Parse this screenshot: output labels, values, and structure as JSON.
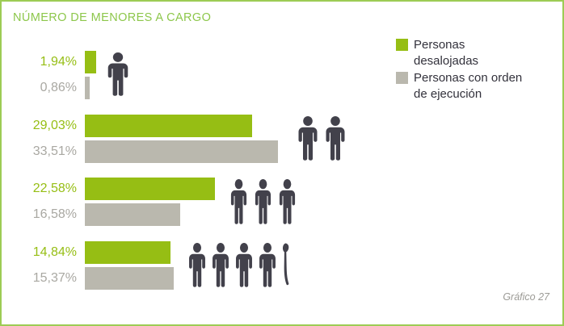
{
  "header": {
    "title": "NÚMERO DE MENORES A CARGO"
  },
  "footer": {
    "note": "Gráfico 27"
  },
  "colors": {
    "border_green": "#9DCC55",
    "title_green": "#8DC74B",
    "bar_green": "#96BE14",
    "bar_gray": "#BAB8AE",
    "value_green": "#96BE14",
    "value_gray": "#A9A8A2",
    "icon_dark": "#42414B",
    "legend_text": "#32313B",
    "footer_gray": "#9C9B96"
  },
  "legend": {
    "items": [
      {
        "label": "Personas desalojadas",
        "swatch": "#96BE14"
      },
      {
        "label": "Personas con orden de ejecución",
        "swatch": "#BAB8AE"
      }
    ]
  },
  "chart_data": {
    "type": "bar",
    "orientation": "horizontal",
    "title": "NÚMERO DE MENORES A CARGO",
    "unit": "%",
    "axis": {
      "min": 0,
      "max": 35,
      "gridlines": false
    },
    "legend_position": "top-right",
    "categories_minors_icon_counts": [
      1,
      2,
      3,
      4
    ],
    "last_category_partial_extra_icon": true,
    "series": [
      {
        "name": "Personas desalojadas",
        "color": "#96BE14",
        "values": [
          1.94,
          29.03,
          22.58,
          14.84
        ],
        "labels": [
          "1,94%",
          "29,03%",
          "22,58%",
          "14,84%"
        ]
      },
      {
        "name": "Personas con orden de ejecución",
        "color": "#BAB8AE",
        "values": [
          0.86,
          33.51,
          16.58,
          15.37
        ],
        "labels": [
          "0,86%",
          "33,51%",
          "16,58%",
          "15,37%"
        ]
      }
    ],
    "caption": "Gráfico 27"
  }
}
